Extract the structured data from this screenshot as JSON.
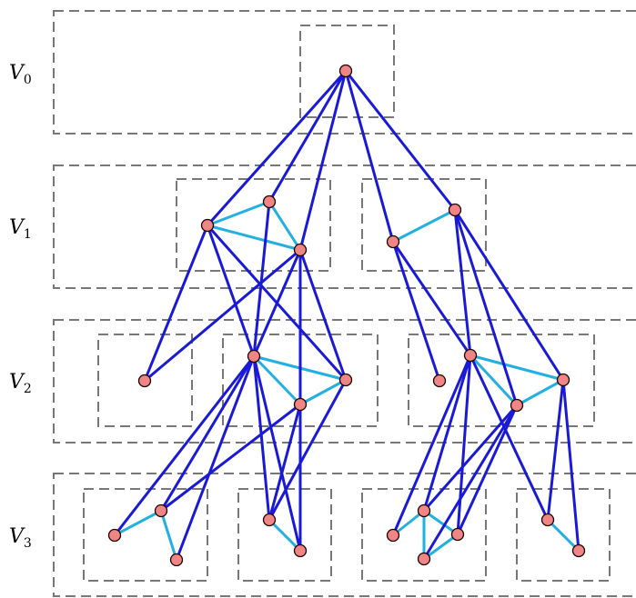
{
  "levels": [
    {
      "label": "V",
      "sub": "0"
    },
    {
      "label": "V",
      "sub": "1"
    },
    {
      "label": "V",
      "sub": "2"
    },
    {
      "label": "V",
      "sub": "3"
    }
  ],
  "colors": {
    "inter_level_edge": "#1a1ad6",
    "intra_cluster_edge": "#22b0e0",
    "node_fill": "#f08585",
    "box_stroke": "#777777"
  }
}
